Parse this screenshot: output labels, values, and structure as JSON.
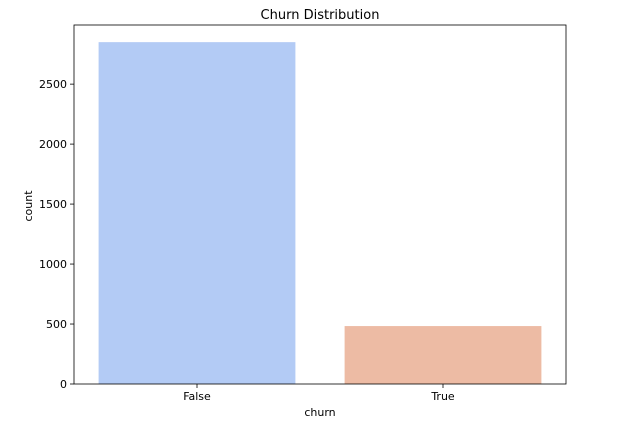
{
  "chart_data": {
    "type": "bar",
    "title": "Churn Distribution",
    "xlabel": "churn",
    "ylabel": "count",
    "categories": [
      "False",
      "True"
    ],
    "values": [
      2850,
      483
    ],
    "ylim": [
      0,
      2993
    ],
    "yticks": [
      0,
      500,
      1000,
      1500,
      2000,
      2500
    ],
    "colors": [
      "#b3cbf5",
      "#edbba4"
    ],
    "grid": false,
    "legend": "none"
  }
}
